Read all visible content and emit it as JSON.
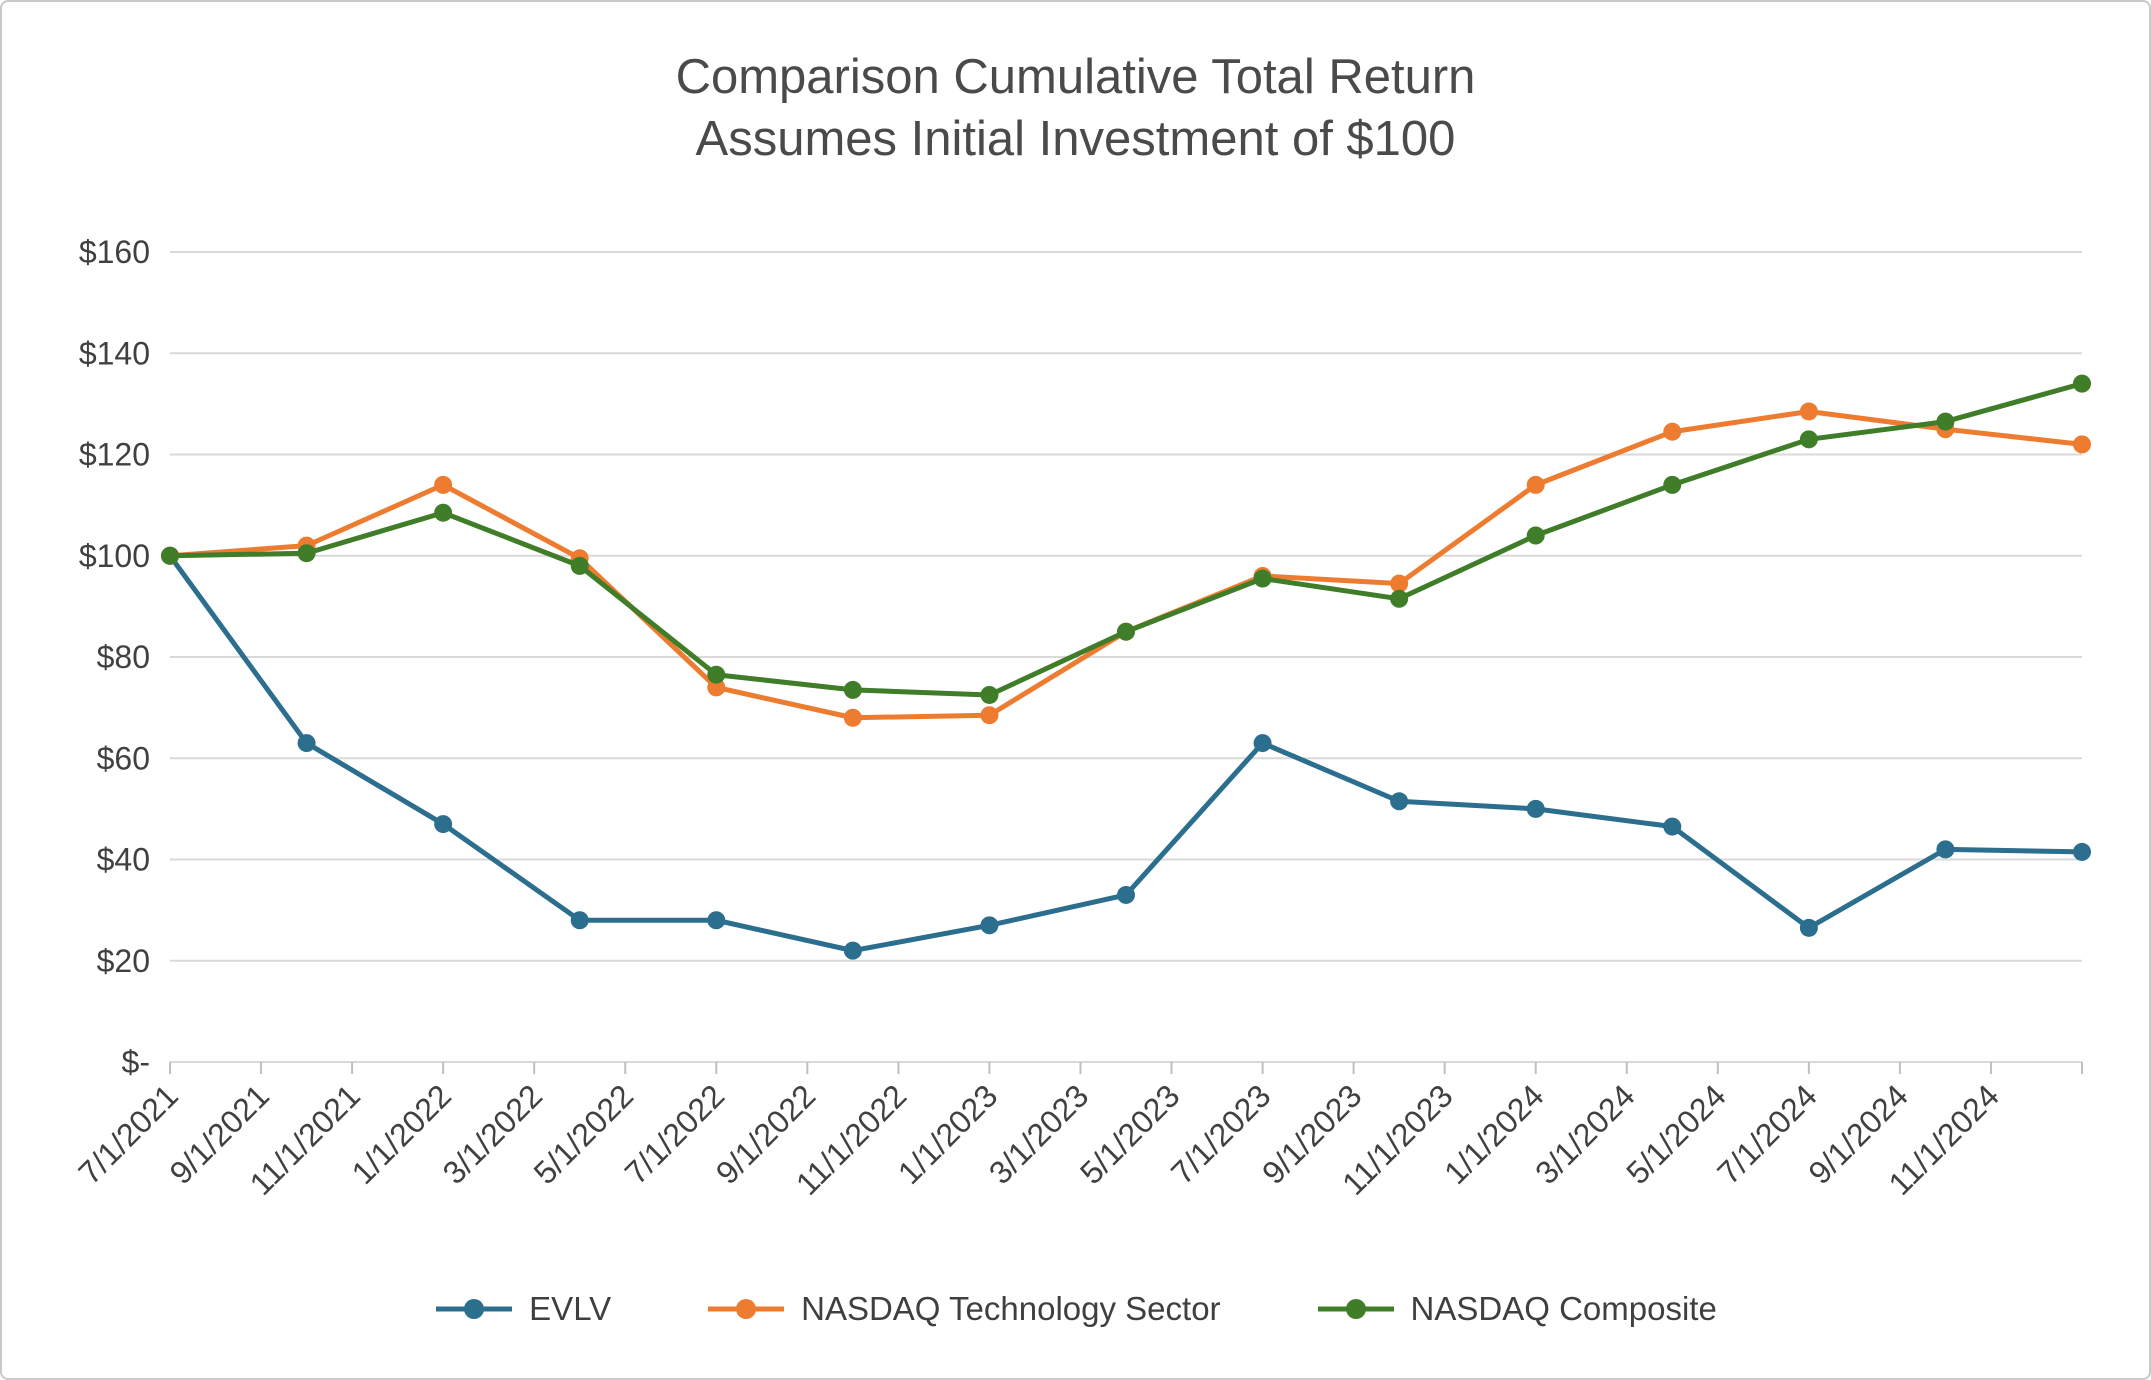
{
  "chart_data": {
    "type": "line",
    "title_line1": "Comparison Cumulative Total Return",
    "title_line2": "Assumes Initial Investment of $100",
    "ylim": [
      0,
      160
    ],
    "y_tick_step": 20,
    "y_tick_labels": [
      "$-",
      "$20",
      "$40",
      "$60",
      "$80",
      "$100",
      "$120",
      "$140",
      "$160"
    ],
    "x_tick_labels": [
      "7/1/2021",
      "9/1/2021",
      "11/1/2021",
      "1/1/2022",
      "3/1/2022",
      "5/1/2022",
      "7/1/2022",
      "9/1/2022",
      "11/1/2022",
      "1/1/2023",
      "3/1/2023",
      "5/1/2023",
      "7/1/2023",
      "9/1/2023",
      "11/1/2023",
      "1/1/2024",
      "3/1/2024",
      "5/1/2024",
      "7/1/2024",
      "9/1/2024",
      "11/1/2024"
    ],
    "grid": "horizontal",
    "legend_position": "bottom",
    "series": [
      {
        "name": "EVLV",
        "color": "#2B6E8E",
        "values": [
          100,
          63,
          47,
          28,
          28,
          22,
          27,
          33,
          63,
          51.5,
          50,
          46.5,
          26.5,
          42,
          41.5
        ]
      },
      {
        "name": "NASDAQ Technology Sector",
        "color": "#EE7C30",
        "values": [
          100,
          102,
          114,
          99.5,
          74,
          68,
          68.5,
          85,
          96,
          94.5,
          114,
          124.5,
          128.5,
          125,
          122
        ]
      },
      {
        "name": "NASDAQ Composite",
        "color": "#3F7D28",
        "values": [
          100,
          100.5,
          108.5,
          98,
          76.5,
          73.5,
          72.5,
          85,
          95.5,
          91.5,
          104,
          114,
          123,
          126.5,
          134
        ]
      }
    ],
    "colors": {
      "grid": "#D9D9D9",
      "axis": "#BFBFBF",
      "text": "#404040",
      "title": "#4A4A4A",
      "background": "#FFFFFF",
      "border": "#C9C9C9"
    }
  }
}
